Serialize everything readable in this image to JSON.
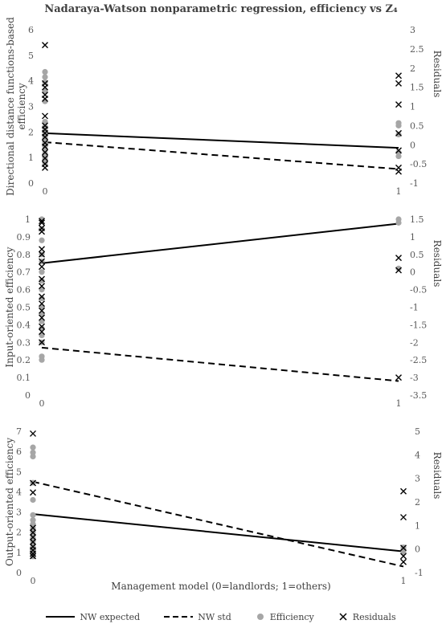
{
  "title": "Nadaraya-Watson nonparametric regression, efficiency vs Z₄",
  "xlabel": "Management model (0=landlords; 1=others)",
  "legend": [
    {
      "name": "NW expected",
      "style": "solid"
    },
    {
      "name": "NW std",
      "style": "dashed"
    },
    {
      "name": "Efficiency",
      "style": "dot"
    },
    {
      "name": "Residuals",
      "style": "cross"
    }
  ],
  "chart_data": [
    {
      "type": "line",
      "ylabel": "Directional distance functions-based efficiency",
      "y2label": "Residuals",
      "x_ticks": [
        "0",
        "1"
      ],
      "ylim": [
        0,
        6
      ],
      "y_ticks": [
        "0",
        "1",
        "2",
        "3",
        "4",
        "5",
        "6"
      ],
      "y2lim": [
        -1,
        3
      ],
      "y2_ticks": [
        "-1",
        "-0.5",
        "0",
        "0.5",
        "1",
        "1.5",
        "2",
        "2.5",
        "3"
      ],
      "series": [
        {
          "name": "NW expected",
          "axis": "left",
          "x": [
            0,
            1
          ],
          "y": [
            1.95,
            1.38
          ]
        },
        {
          "name": "NW std",
          "axis": "left",
          "x": [
            0,
            1
          ],
          "y": [
            1.6,
            0.55
          ]
        },
        {
          "name": "Efficiency",
          "axis": "left",
          "points": [
            [
              0,
              4.35
            ],
            [
              0,
              4.15
            ],
            [
              0,
              3.95
            ],
            [
              0,
              3.6
            ],
            [
              0,
              3.2
            ],
            [
              0,
              2.4
            ],
            [
              0,
              2.2
            ],
            [
              0,
              2.05
            ],
            [
              0,
              1.9
            ],
            [
              0,
              1.75
            ],
            [
              0,
              1.6
            ],
            [
              0,
              1.45
            ],
            [
              0,
              1.3
            ],
            [
              0,
              1.15
            ],
            [
              0,
              1.0
            ],
            [
              0,
              0.9
            ],
            [
              0,
              0.8
            ],
            [
              1,
              2.35
            ],
            [
              1,
              2.25
            ],
            [
              1,
              1.9
            ],
            [
              1,
              1.2
            ],
            [
              1,
              1.05
            ]
          ]
        },
        {
          "name": "Residuals",
          "axis": "right",
          "points": [
            [
              0,
              2.6
            ],
            [
              0,
              1.6
            ],
            [
              0,
              1.5
            ],
            [
              0,
              1.3
            ],
            [
              0,
              1.2
            ],
            [
              0,
              0.75
            ],
            [
              0,
              0.5
            ],
            [
              0,
              0.4
            ],
            [
              0,
              0.3
            ],
            [
              0,
              0.2
            ],
            [
              0,
              0.05
            ],
            [
              0,
              -0.05
            ],
            [
              0,
              -0.2
            ],
            [
              0,
              -0.35
            ],
            [
              0,
              -0.5
            ],
            [
              0,
              -0.6
            ],
            [
              1,
              1.8
            ],
            [
              1,
              1.6
            ],
            [
              1,
              1.05
            ],
            [
              1,
              0.3
            ],
            [
              1,
              -0.15
            ],
            [
              1,
              -0.6
            ],
            [
              1,
              -0.7
            ]
          ]
        }
      ]
    },
    {
      "type": "line",
      "ylabel": "Input-oriented efficiency",
      "y2label": "Residuals",
      "x_ticks": [
        "0",
        "1"
      ],
      "ylim": [
        0,
        1
      ],
      "y_ticks": [
        "0",
        "0.1",
        "0.2",
        "0.3",
        "0.4",
        "0.5",
        "0.6",
        "0.7",
        "0.8",
        "0.9",
        "1"
      ],
      "y2lim": [
        -3.5,
        1.5
      ],
      "y2_ticks": [
        "-3.5",
        "-3",
        "-2.5",
        "-2",
        "-1.5",
        "-1",
        "-0.5",
        "0",
        "0.5",
        "1",
        "1.5"
      ],
      "series": [
        {
          "name": "NW expected",
          "axis": "left",
          "x": [
            0,
            1
          ],
          "y": [
            0.75,
            0.975
          ]
        },
        {
          "name": "NW std",
          "axis": "left",
          "x": [
            0,
            1
          ],
          "y": [
            0.27,
            0.08
          ]
        },
        {
          "name": "Efficiency",
          "axis": "left",
          "points": [
            [
              0,
              1.0
            ],
            [
              0,
              0.945
            ],
            [
              0,
              0.88
            ],
            [
              0,
              0.8
            ],
            [
              0,
              0.76
            ],
            [
              0,
              0.7
            ],
            [
              0,
              0.65
            ],
            [
              0,
              0.6
            ],
            [
              0,
              0.55
            ],
            [
              0,
              0.5
            ],
            [
              0,
              0.46
            ],
            [
              0,
              0.42
            ],
            [
              0,
              0.38
            ],
            [
              0,
              0.34
            ],
            [
              0,
              0.3
            ],
            [
              0,
              0.22
            ],
            [
              0,
              0.2
            ],
            [
              1,
              1.0
            ],
            [
              1,
              0.98
            ],
            [
              1,
              0.72
            ]
          ]
        },
        {
          "name": "Residuals",
          "axis": "right",
          "points": [
            [
              0,
              1.45
            ],
            [
              0,
              1.4
            ],
            [
              0,
              1.25
            ],
            [
              0,
              1.15
            ],
            [
              0,
              0.65
            ],
            [
              0,
              0.5
            ],
            [
              0,
              0.3
            ],
            [
              0,
              0.15
            ],
            [
              0,
              -0.2
            ],
            [
              0,
              -0.4
            ],
            [
              0,
              -0.7
            ],
            [
              0,
              -0.9
            ],
            [
              0,
              -1.1
            ],
            [
              0,
              -1.3
            ],
            [
              0,
              -1.55
            ],
            [
              0,
              -1.7
            ],
            [
              0,
              -2.0
            ],
            [
              1,
              0.4
            ],
            [
              1,
              0.05
            ],
            [
              1,
              -3.0
            ]
          ]
        }
      ]
    },
    {
      "type": "line",
      "ylabel": "Output-oriented efficiency",
      "y2label": "Residuals",
      "x_ticks": [
        "0",
        "1"
      ],
      "ylim": [
        0,
        7
      ],
      "y_ticks": [
        "0",
        "1",
        "2",
        "3",
        "4",
        "5",
        "6",
        "7"
      ],
      "y2lim": [
        -1,
        5
      ],
      "y2_ticks": [
        "-1",
        "0",
        "1",
        "2",
        "3",
        "4",
        "5"
      ],
      "series": [
        {
          "name": "NW expected",
          "axis": "left",
          "x": [
            0,
            1
          ],
          "y": [
            2.9,
            1.05
          ]
        },
        {
          "name": "NW std",
          "axis": "left",
          "x": [
            0,
            1
          ],
          "y": [
            4.5,
            0.3
          ]
        },
        {
          "name": "Efficiency",
          "axis": "left",
          "points": [
            [
              0,
              6.2
            ],
            [
              0,
              5.95
            ],
            [
              0,
              5.75
            ],
            [
              0,
              4.45
            ],
            [
              0,
              3.6
            ],
            [
              0,
              2.85
            ],
            [
              0,
              2.6
            ],
            [
              0,
              2.4
            ],
            [
              0,
              2.2
            ],
            [
              0,
              2.0
            ],
            [
              0,
              1.85
            ],
            [
              0,
              1.7
            ],
            [
              0,
              1.55
            ],
            [
              0,
              1.4
            ],
            [
              0,
              1.25
            ],
            [
              0,
              1.1
            ],
            [
              0,
              1.0
            ],
            [
              0,
              0.9
            ],
            [
              0,
              0.8
            ],
            [
              1,
              1.25
            ],
            [
              1,
              1.15
            ],
            [
              1,
              1.0
            ]
          ]
        },
        {
          "name": "Residuals",
          "axis": "right",
          "points": [
            [
              0,
              4.9
            ],
            [
              0,
              2.8
            ],
            [
              0,
              2.4
            ],
            [
              0,
              0.9
            ],
            [
              0,
              0.7
            ],
            [
              0,
              0.5
            ],
            [
              0,
              0.3
            ],
            [
              0,
              0.1
            ],
            [
              0,
              -0.05
            ],
            [
              0,
              -0.2
            ],
            [
              0,
              -0.3
            ],
            [
              1,
              2.45
            ],
            [
              1,
              1.35
            ],
            [
              1,
              0.05
            ],
            [
              1,
              -0.3
            ],
            [
              1,
              -0.55
            ]
          ]
        }
      ]
    }
  ]
}
